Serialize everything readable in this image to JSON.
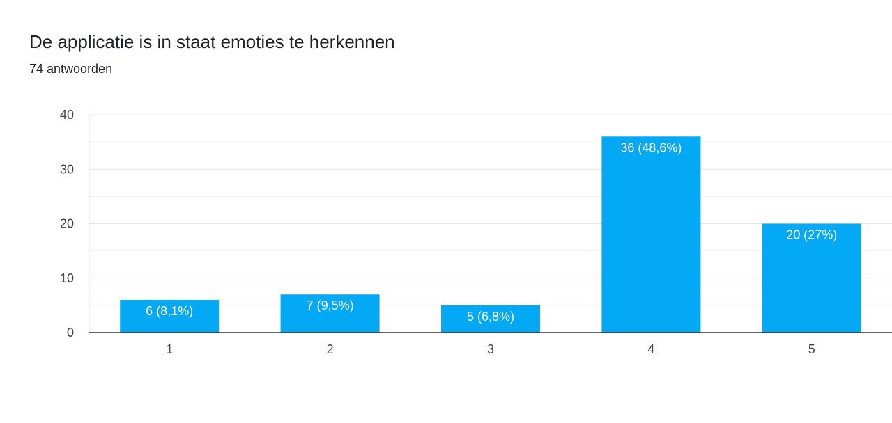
{
  "header": {
    "title": "De applicatie is in staat emoties te herkennen",
    "subtitle": "74 antwoorden"
  },
  "colors": {
    "bar": "#03a9f4",
    "gridline": "#e6e6e6",
    "minor_gridline": "#f3f3f3",
    "axis": "#333333",
    "tick_text": "#444444",
    "bar_label_text": "#ffffff"
  },
  "chart_data": {
    "type": "bar",
    "title": "De applicatie is in staat emoties te herkennen",
    "subtitle": "74 antwoorden",
    "categories": [
      "1",
      "2",
      "3",
      "4",
      "5"
    ],
    "values": [
      6,
      7,
      5,
      36,
      20
    ],
    "data_labels": [
      "6 (8,1%)",
      "7 (9,5%)",
      "5 (6,8%)",
      "36 (48,6%)",
      "20 (27%)"
    ],
    "ylim": [
      0,
      40
    ],
    "yticks": [
      "0",
      "10",
      "20",
      "30",
      "40"
    ],
    "grid": true,
    "legend": "none"
  }
}
